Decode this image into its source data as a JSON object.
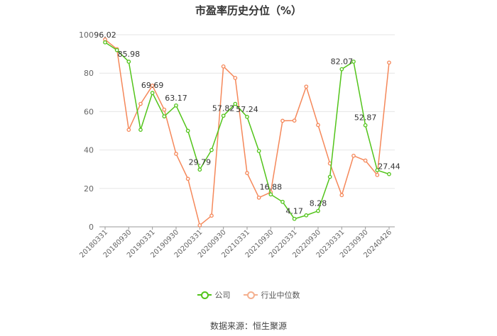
{
  "title": "市盈率历史分位（%）",
  "source": "数据来源：恒生聚源",
  "chart_data": {
    "type": "line",
    "ylim": [
      0,
      100
    ],
    "yticks": [
      0,
      20,
      40,
      60,
      80,
      100
    ],
    "x": [
      "20180331",
      "20180630",
      "20180930",
      "20181231",
      "20190331",
      "20190630",
      "20190930",
      "20191231",
      "20200331",
      "20200630",
      "20200930",
      "20201231",
      "20210331",
      "20210630",
      "20210930",
      "20211231",
      "20220331",
      "20220630",
      "20220930",
      "20221231",
      "20230331",
      "20230630",
      "20230930",
      "20231231",
      "20240426"
    ],
    "xtick_labels": [
      "20180331",
      "20180930",
      "20190331",
      "20190930",
      "20200331",
      "20200930",
      "20210331",
      "20210930",
      "20220331",
      "20220930",
      "20230331",
      "20230930",
      "20240426"
    ],
    "grid": true,
    "legend_position": "bottom",
    "series": [
      {
        "name": "公司",
        "color": "#52c41a",
        "values": [
          96.02,
          92.0,
          85.98,
          50.5,
          69.69,
          57.5,
          63.17,
          50.0,
          29.79,
          40.0,
          57.82,
          64.0,
          57.24,
          39.5,
          16.88,
          13.0,
          4.17,
          6.0,
          8.28,
          26.0,
          82.07,
          86.0,
          52.87,
          29.5,
          27.44
        ],
        "labels": {
          "0": "96.02",
          "2": "85.98",
          "4": "69.69",
          "6": "63.17",
          "8": "29.79",
          "10": "57.82",
          "12": "57.24",
          "14": "16.88",
          "16": "4.17",
          "18": "8.28",
          "20": "82.07",
          "22": "52.87",
          "24": "27.44"
        }
      },
      {
        "name": "行业中位数",
        "color": "#f5885a",
        "values": [
          97.5,
          92.5,
          50.5,
          64.0,
          73.5,
          61.0,
          38.0,
          25.0,
          0.8,
          5.8,
          83.5,
          77.5,
          28.0,
          15.2,
          18.0,
          55.2,
          55.3,
          73.0,
          53.0,
          33.0,
          16.5,
          37.0,
          34.5,
          27.0,
          85.5
        ]
      }
    ]
  },
  "legend": {
    "items": [
      {
        "label": "公司",
        "color": "#52c41a"
      },
      {
        "label": "行业中位数",
        "color": "#f5885a"
      }
    ]
  }
}
